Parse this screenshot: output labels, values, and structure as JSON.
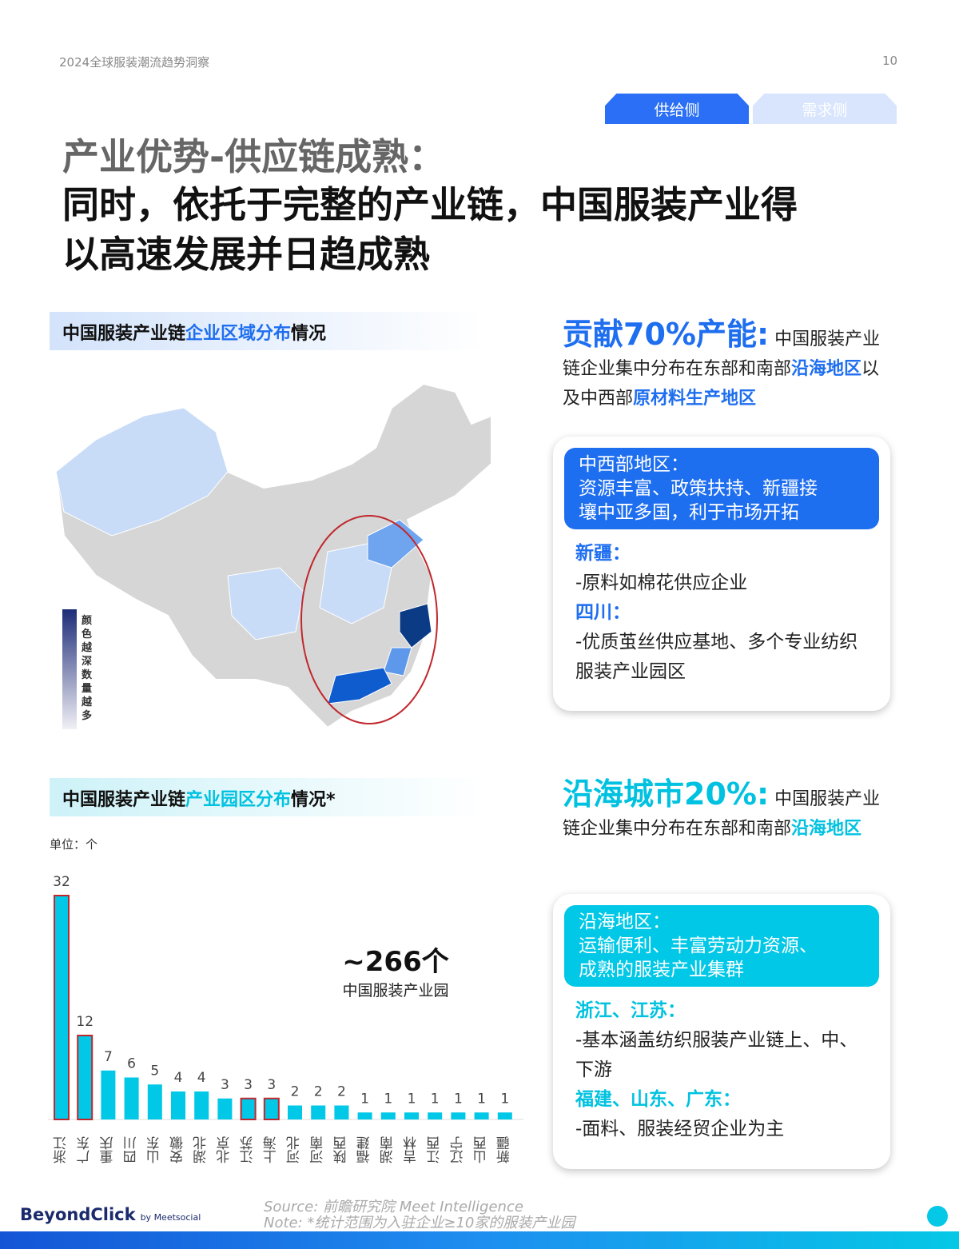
{
  "header": {
    "report_title": "2024全球服装潮流趋势洞察",
    "page_number": "10"
  },
  "tabs": [
    {
      "label": "供给侧",
      "active": true
    },
    {
      "label": "需求侧",
      "active": false
    }
  ],
  "title": {
    "line1": "产业优势-供应链成熟：",
    "line2": "同时，依托于完整的产业链，中国服装产业得",
    "line3": "以高速发展并日趋成熟"
  },
  "section1": {
    "heading_a": "中国服装产业链",
    "heading_b": "企业区域分布",
    "heading_c": "情况",
    "legend": "颜色越深数量越多"
  },
  "section2": {
    "heading_a": "中国服装产业链",
    "heading_b": "产业园区分布",
    "heading_c": "情况*",
    "unit": "单位：个",
    "total": "~266个",
    "total_label": "中国服装产业园"
  },
  "right1": {
    "big": "贡献70%产能:",
    "t1": " 中国服装产业链企业集中分布在东部和南部",
    "t2": "沿海地区",
    "t3": "以及中西部",
    "t4": "原材料生产地区",
    "card_head": [
      "中西部地区：",
      "资源丰富、政策扶持、新疆接",
      "壤中亚多国，利于市场开拓"
    ],
    "items": [
      {
        "k": "新疆：",
        "v": "-原料如棉花供应企业"
      },
      {
        "k": "四川：",
        "v": "-优质茧丝供应基地、多个专业纺织服装产业园区"
      }
    ]
  },
  "right2": {
    "big": "沿海城市20%:",
    "t1": " 中国服装产业链企业集中分布在东部和南部",
    "t2": "沿海地区",
    "card_head": [
      "沿海地区：",
      "运输便利、丰富劳动力资源、",
      "成熟的服装产业集群"
    ],
    "items": [
      {
        "k": "浙江、江苏：",
        "v": "-基本涵盖纺织服装产业链上、中、下游"
      },
      {
        "k": "福建、山东、广东：",
        "v": "-面料、服装经贸企业为主"
      }
    ]
  },
  "footer": {
    "logo": "BeyondClick",
    "logo_sub": "by Meetsocial",
    "source": "Source: 前瞻研究院 Meet Intelligence",
    "note": "Note: *统计范围为入驻企业≥10家的服装产业园"
  },
  "colors": {
    "accent_blue": "#1e6ef0",
    "accent_cyan": "#00c2e0",
    "bar": "#00c8e6",
    "highlight_border": "#c0272d"
  },
  "chart_data": {
    "type": "bar",
    "categories": [
      "浙江",
      "广东",
      "重庆",
      "四川",
      "山东",
      "安徽",
      "湖北",
      "北京",
      "江苏",
      "上海",
      "河北",
      "河南",
      "陕西",
      "福建",
      "湖南",
      "吉林",
      "江西",
      "辽宁",
      "山西",
      "新疆"
    ],
    "values": [
      32,
      12,
      7,
      6,
      5,
      4,
      4,
      3,
      3,
      3,
      2,
      2,
      2,
      1,
      1,
      1,
      1,
      1,
      1,
      1
    ],
    "highlighted": [
      "浙江",
      "广东",
      "江苏",
      "上海"
    ],
    "ylim": [
      0,
      32
    ],
    "grid": false
  }
}
